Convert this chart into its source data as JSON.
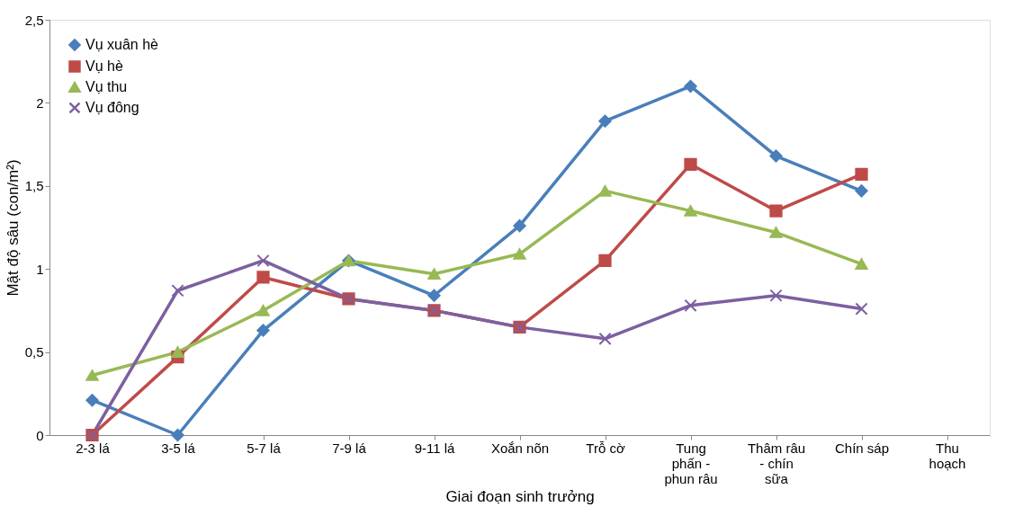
{
  "chart_data": {
    "type": "line",
    "xlabel": "Giai đoạn sinh trưởng",
    "ylabel": "Mật độ sâu (con/m²)",
    "categories": [
      "2-3 lá",
      "3-5 lá",
      "5-7 lá",
      "7-9 lá",
      "9-11 lá",
      "Xoắn nõn",
      "Trỗ cờ",
      "Tung phấn - phun râu",
      "Thâm râu - chín sữa",
      "Chín sáp",
      "Thu hoạch"
    ],
    "series": [
      {
        "name": "Vụ xuân hè",
        "color": "#4a7ebb",
        "marker": "diamond",
        "values": [
          0.21,
          0,
          0.63,
          1.05,
          0.84,
          1.26,
          1.89,
          2.1,
          1.68,
          1.47,
          null
        ]
      },
      {
        "name": "Vụ hè",
        "color": "#be4b48",
        "marker": "square",
        "values": [
          0,
          0.47,
          0.95,
          0.82,
          0.75,
          0.65,
          1.05,
          1.63,
          1.35,
          1.57,
          null
        ]
      },
      {
        "name": "Vụ thu",
        "color": "#98b954",
        "marker": "triangle",
        "values": [
          0.36,
          0.5,
          0.75,
          1.05,
          0.97,
          1.09,
          1.47,
          1.35,
          1.22,
          1.03,
          null
        ]
      },
      {
        "name": "Vụ đông",
        "color": "#7d60a0",
        "marker": "cross",
        "values": [
          0,
          0.87,
          1.05,
          0.82,
          0.75,
          0.65,
          0.58,
          0.78,
          0.84,
          0.76,
          null
        ]
      }
    ],
    "ylim": [
      0,
      2.5
    ],
    "yticks": [
      0,
      {
        "value": 0.5,
        "label": "0,5"
      },
      1,
      {
        "value": 1.5,
        "label": "1,5"
      },
      2,
      {
        "value": 2.5,
        "label": "2,5"
      }
    ],
    "grid": false,
    "legend": "top left",
    "line_style": "solid"
  }
}
